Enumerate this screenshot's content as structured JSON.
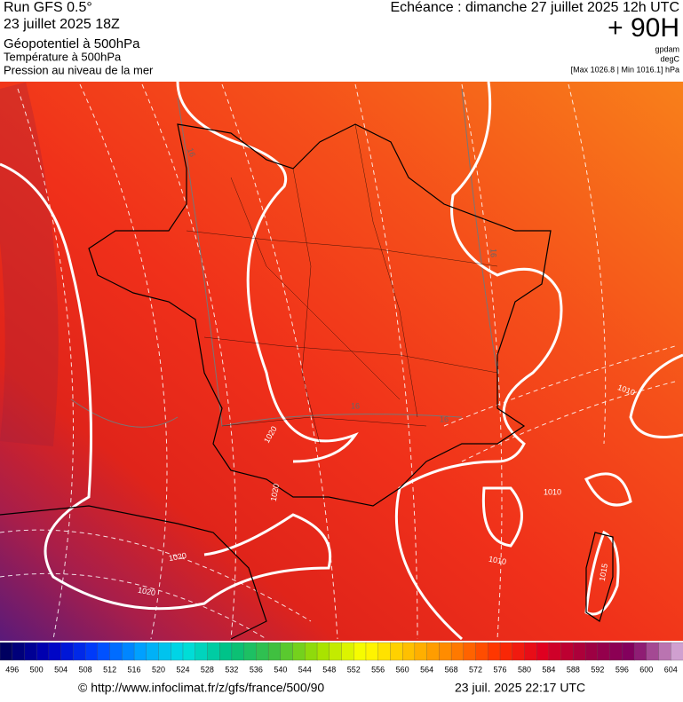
{
  "header": {
    "run": "Run GFS 0.5°",
    "run_date": "23 juillet 2025 18Z",
    "layer1": "Géopotentiel à 500hPa",
    "layer2": "Température à 500hPa",
    "layer3": "Pression au niveau de la mer",
    "valid": "Echéance : dimanche 27 juillet 2025 12h UTC",
    "lead": "+ 90H",
    "unit1": "gpdam",
    "unit2": "degC",
    "range": "[Max 1026.8 | Min 1016.1] hPa"
  },
  "contour_labels": [
    "1020",
    "1020",
    "1020",
    "1020",
    "1010",
    "1010",
    "1010",
    "1015",
    "16",
    "16",
    "16",
    "16"
  ],
  "colorbar": {
    "labels": [
      496,
      500,
      504,
      508,
      512,
      516,
      520,
      524,
      528,
      532,
      536,
      540,
      544,
      548,
      552,
      556,
      560,
      564,
      568,
      572,
      576,
      580,
      584,
      588,
      592,
      596,
      600,
      604
    ]
  },
  "footer": {
    "url": "© http://www.infoclimat.fr/z/gfs/france/500/90",
    "timestamp": "23 juil. 2025 22:17 UTC"
  }
}
